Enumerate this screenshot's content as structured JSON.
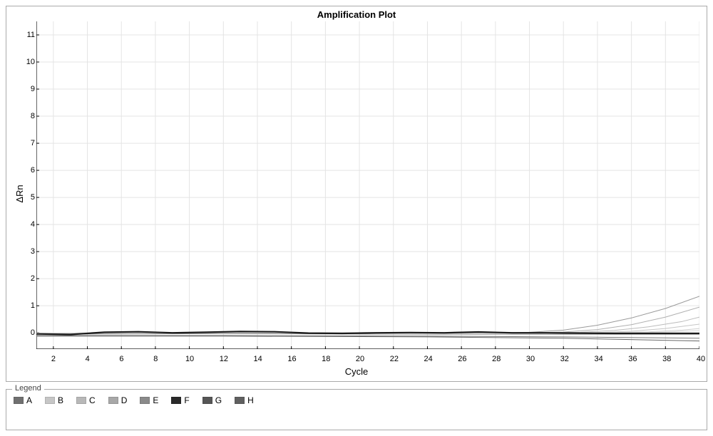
{
  "chart": {
    "type": "line",
    "title": "Amplification Plot",
    "xlabel": "Cycle",
    "ylabel": "ΔRn",
    "title_fontsize": 13,
    "label_fontsize": 13,
    "tick_fontsize": 11,
    "xlim": [
      1,
      40
    ],
    "ylim": [
      -0.6,
      11.5
    ],
    "xtick_step": 2,
    "xticks": [
      2,
      4,
      6,
      8,
      10,
      12,
      14,
      16,
      18,
      20,
      22,
      24,
      26,
      28,
      30,
      32,
      34,
      36,
      38,
      40
    ],
    "yticks": [
      0,
      1,
      2,
      3,
      4,
      5,
      6,
      7,
      8,
      9,
      10,
      11
    ],
    "background_color": "#ffffff",
    "grid_color": "#e4e4e4",
    "axis_color": "#000000",
    "border_color": "#aaaaaa",
    "line_width": 1.2,
    "baseline_line_width": 2.0,
    "curves": [
      {
        "series": "low1",
        "color": "#9a9a9a",
        "width": 1.0,
        "points": [
          [
            1,
            -0.02
          ],
          [
            10,
            0.0
          ],
          [
            20,
            0.0
          ],
          [
            28,
            0.0
          ],
          [
            30,
            0.02
          ],
          [
            32,
            0.1
          ],
          [
            34,
            0.28
          ],
          [
            36,
            0.55
          ],
          [
            38,
            0.9
          ],
          [
            40,
            1.35
          ]
        ]
      },
      {
        "series": "low2",
        "color": "#b0b0b0",
        "width": 1.0,
        "points": [
          [
            1,
            -0.02
          ],
          [
            10,
            0.0
          ],
          [
            20,
            0.0
          ],
          [
            30,
            0.0
          ],
          [
            32,
            0.03
          ],
          [
            34,
            0.12
          ],
          [
            36,
            0.3
          ],
          [
            38,
            0.58
          ],
          [
            40,
            0.95
          ]
        ]
      },
      {
        "series": "low3",
        "color": "#bcbcbc",
        "width": 1.0,
        "points": [
          [
            1,
            -0.02
          ],
          [
            10,
            0.0
          ],
          [
            20,
            0.0
          ],
          [
            30,
            0.0
          ],
          [
            33,
            0.02
          ],
          [
            35,
            0.09
          ],
          [
            37,
            0.22
          ],
          [
            39,
            0.42
          ],
          [
            40,
            0.58
          ]
        ]
      },
      {
        "series": "low4",
        "color": "#c6c6c6",
        "width": 1.0,
        "points": [
          [
            1,
            -0.01
          ],
          [
            10,
            0.0
          ],
          [
            20,
            0.0
          ],
          [
            30,
            0.0
          ],
          [
            34,
            0.01
          ],
          [
            36,
            0.06
          ],
          [
            38,
            0.16
          ],
          [
            40,
            0.32
          ]
        ]
      },
      {
        "series": "low5",
        "color": "#cfcfcf",
        "width": 1.0,
        "points": [
          [
            1,
            -0.01
          ],
          [
            10,
            0.0
          ],
          [
            20,
            0.0
          ],
          [
            30,
            0.0
          ],
          [
            35,
            0.01
          ],
          [
            37,
            0.04
          ],
          [
            39,
            0.1
          ],
          [
            40,
            0.16
          ]
        ]
      },
      {
        "series": "low6",
        "color": "#d6d6d6",
        "width": 1.0,
        "points": [
          [
            1,
            -0.01
          ],
          [
            10,
            0.0
          ],
          [
            20,
            0.0
          ],
          [
            30,
            0.0
          ],
          [
            36,
            0.0
          ],
          [
            38,
            0.03
          ],
          [
            40,
            0.08
          ]
        ]
      },
      {
        "series": "flat1",
        "color": "#888888",
        "width": 1.0,
        "points": [
          [
            1,
            -0.05
          ],
          [
            12,
            -0.03
          ],
          [
            24,
            -0.05
          ],
          [
            32,
            -0.05
          ],
          [
            40,
            -0.05
          ]
        ]
      },
      {
        "series": "flat2",
        "color": "#777777",
        "width": 1.0,
        "points": [
          [
            1,
            -0.1
          ],
          [
            12,
            -0.1
          ],
          [
            24,
            -0.12
          ],
          [
            32,
            -0.15
          ],
          [
            40,
            -0.2
          ]
        ]
      },
      {
        "series": "flat3",
        "color": "#666666",
        "width": 1.0,
        "points": [
          [
            1,
            -0.12
          ],
          [
            12,
            -0.12
          ],
          [
            24,
            -0.15
          ],
          [
            32,
            -0.2
          ],
          [
            40,
            -0.3
          ]
        ]
      },
      {
        "series": "baseline",
        "color": "#1a1a1a",
        "width": 2.2,
        "points": [
          [
            1,
            -0.04
          ],
          [
            3,
            -0.06
          ],
          [
            5,
            0.02
          ],
          [
            7,
            0.04
          ],
          [
            9,
            0.0
          ],
          [
            11,
            0.02
          ],
          [
            13,
            0.05
          ],
          [
            15,
            0.04
          ],
          [
            17,
            -0.01
          ],
          [
            19,
            -0.02
          ],
          [
            21,
            0.0
          ],
          [
            23,
            0.01
          ],
          [
            25,
            0.0
          ],
          [
            27,
            0.03
          ],
          [
            29,
            0.0
          ],
          [
            31,
            0.0
          ],
          [
            33,
            -0.01
          ],
          [
            35,
            -0.02
          ],
          [
            37,
            -0.02
          ],
          [
            39,
            -0.02
          ],
          [
            40,
            -0.02
          ]
        ]
      }
    ]
  },
  "legend": {
    "title": "Legend",
    "items": [
      {
        "label": "A",
        "color": "#707070"
      },
      {
        "label": "B",
        "color": "#c6c6c6"
      },
      {
        "label": "C",
        "color": "#b8b8b8"
      },
      {
        "label": "D",
        "color": "#a8a8a8"
      },
      {
        "label": "E",
        "color": "#8a8a8a"
      },
      {
        "label": "F",
        "color": "#2a2a2a"
      },
      {
        "label": "G",
        "color": "#565656"
      },
      {
        "label": "H",
        "color": "#606060"
      }
    ]
  }
}
